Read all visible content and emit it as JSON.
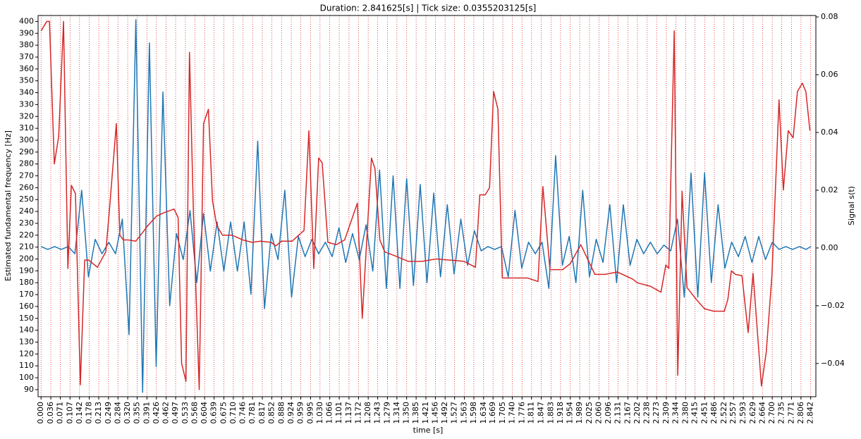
{
  "chart_data": {
    "type": "line",
    "title": "Duration: 2.841625[s] | Tick size: 0.0355203125[s]",
    "xlabel": "time [s]",
    "ylabel": "Estimated fundamental frequency [Hz]",
    "y2label": "Signal s(t)",
    "grid": true,
    "grid_color": "#d62728",
    "xlim": [
      -0.011,
      2.861
    ],
    "ylim": [
      84,
      405
    ],
    "y2lim": [
      -0.0515,
      0.0805
    ],
    "xticks": [
      {
        "value": 0,
        "label": "0.000"
      },
      0.036,
      0.071,
      0.107,
      0.142,
      0.178,
      0.213,
      0.249,
      0.284,
      {
        "value": 0.32,
        "label": "0.320"
      },
      0.355,
      0.391,
      0.426,
      0.462,
      0.497,
      0.533,
      0.568,
      0.604,
      0.639,
      0.675,
      {
        "value": 0.71,
        "label": "0.710"
      },
      0.746,
      0.781,
      0.817,
      0.852,
      0.888,
      0.924,
      0.959,
      0.995,
      {
        "value": 1.03,
        "label": "1.030"
      },
      1.066,
      1.101,
      1.137,
      1.172,
      1.208,
      1.243,
      1.279,
      1.314,
      {
        "value": 1.35,
        "label": "1.350"
      },
      1.385,
      1.421,
      1.456,
      1.492,
      1.527,
      1.563,
      1.598,
      1.634,
      1.669,
      1.705,
      {
        "value": 1.74,
        "label": "1.740"
      },
      1.776,
      1.811,
      1.847,
      1.883,
      1.918,
      1.954,
      1.989,
      2.025,
      {
        "value": 2.06,
        "label": "2.060"
      },
      2.096,
      2.131,
      2.167,
      2.202,
      2.238,
      2.273,
      2.309,
      2.344,
      {
        "value": 2.38,
        "label": "2.380"
      },
      2.415,
      2.451,
      2.486,
      2.522,
      2.557,
      2.593,
      2.629,
      2.664,
      {
        "value": 2.7,
        "label": "2.700"
      },
      2.735,
      2.771,
      2.806,
      2.842
    ],
    "yticks": [
      90,
      100,
      110,
      120,
      130,
      140,
      150,
      160,
      170,
      180,
      190,
      200,
      210,
      220,
      230,
      240,
      250,
      260,
      270,
      280,
      290,
      300,
      310,
      320,
      330,
      340,
      350,
      360,
      370,
      380,
      390,
      400
    ],
    "y2ticks": [
      {
        "value": -0.04,
        "label": "−0.04"
      },
      {
        "value": -0.02,
        "label": "−0.02"
      },
      {
        "value": 0,
        "label": "0.00"
      },
      0.02,
      0.04,
      0.06,
      0.08
    ],
    "series": [
      {
        "color": "#1f77b4",
        "axis": "y2",
        "x": [
          0,
          0.025,
          0.05,
          0.075,
          0.1,
          0.125,
          0.15,
          0.175,
          0.2,
          0.225,
          0.25,
          0.275,
          0.3,
          0.325,
          0.35,
          0.375,
          0.4,
          0.425,
          0.45,
          0.475,
          0.5,
          0.525,
          0.55,
          0.575,
          0.6,
          0.625,
          0.65,
          0.675,
          0.7,
          0.725,
          0.75,
          0.775,
          0.8,
          0.825,
          0.85,
          0.875,
          0.9,
          0.925,
          0.95,
          0.975,
          1.0,
          1.025,
          1.05,
          1.075,
          1.1,
          1.125,
          1.15,
          1.175,
          1.2,
          1.225,
          1.25,
          1.275,
          1.3,
          1.325,
          1.35,
          1.375,
          1.4,
          1.425,
          1.45,
          1.475,
          1.5,
          1.525,
          1.55,
          1.575,
          1.6,
          1.625,
          1.65,
          1.675,
          1.7,
          1.725,
          1.75,
          1.775,
          1.8,
          1.825,
          1.85,
          1.875,
          1.9,
          1.925,
          1.95,
          1.975,
          2.0,
          2.025,
          2.05,
          2.075,
          2.1,
          2.125,
          2.15,
          2.175,
          2.2,
          2.225,
          2.25,
          2.275,
          2.3,
          2.325,
          2.35,
          2.375,
          2.4,
          2.425,
          2.45,
          2.475,
          2.5,
          2.525,
          2.55,
          2.575,
          2.6,
          2.625,
          2.65,
          2.675,
          2.7,
          2.725,
          2.75,
          2.775,
          2.8,
          2.825,
          2.842
        ],
        "values": [
          0.0005,
          -0.0005,
          0.0005,
          -0.0005,
          0.0005,
          -0.002,
          0.02,
          -0.01,
          0.003,
          -0.002,
          0.002,
          -0.002,
          0.01,
          -0.03,
          0.079,
          -0.05,
          0.071,
          -0.041,
          0.054,
          -0.02,
          0.005,
          -0.004,
          0.013,
          -0.012,
          0.012,
          -0.008,
          0.009,
          -0.008,
          0.009,
          -0.008,
          0.009,
          -0.016,
          0.037,
          -0.021,
          0.005,
          -0.004,
          0.02,
          -0.017,
          0.004,
          -0.003,
          0.003,
          -0.002,
          0.002,
          -0.003,
          0.007,
          -0.005,
          0.005,
          -0.004,
          0.008,
          -0.008,
          0.027,
          -0.014,
          0.025,
          -0.014,
          0.024,
          -0.013,
          0.022,
          -0.012,
          0.019,
          -0.01,
          0.015,
          -0.009,
          0.01,
          -0.006,
          0.006,
          -0.001,
          0.0005,
          -0.0005,
          0.0005,
          -0.01,
          0.013,
          -0.007,
          0.002,
          -0.002,
          0.002,
          -0.014,
          0.032,
          -0.006,
          0.004,
          -0.012,
          0.02,
          -0.01,
          0.003,
          -0.005,
          0.015,
          -0.012,
          0.015,
          -0.006,
          0.003,
          -0.002,
          0.002,
          -0.002,
          0.001,
          -0.001,
          0.01,
          -0.017,
          0.026,
          -0.017,
          0.026,
          -0.012,
          0.015,
          -0.007,
          0.002,
          -0.003,
          0.004,
          -0.005,
          0.004,
          -0.004,
          0.002,
          -0.0005,
          0.0005,
          -0.0005,
          0.0005,
          -0.0005,
          0.0005
        ]
      },
      {
        "color": "#d62728",
        "axis": "y",
        "x": [
          0,
          0.021,
          0.031,
          0.049,
          0.065,
          0.083,
          0.099,
          0.112,
          0.127,
          0.145,
          0.161,
          0.176,
          0.208,
          0.239,
          0.252,
          0.278,
          0.291,
          0.304,
          0.322,
          0.35,
          0.374,
          0.394,
          0.426,
          0.454,
          0.491,
          0.506,
          0.519,
          0.535,
          0.548,
          0.563,
          0.584,
          0.6,
          0.618,
          0.633,
          0.649,
          0.67,
          0.706,
          0.745,
          0.779,
          0.81,
          0.849,
          0.867,
          0.888,
          0.927,
          0.971,
          0.989,
          1.007,
          1.025,
          1.038,
          1.059,
          1.09,
          1.121,
          1.168,
          1.186,
          1.22,
          1.233,
          1.251,
          1.269,
          1.303,
          1.355,
          1.407,
          1.459,
          1.51,
          1.562,
          1.604,
          1.62,
          1.64,
          1.656,
          1.671,
          1.687,
          1.703,
          1.744,
          1.796,
          1.835,
          1.853,
          1.879,
          1.926,
          1.954,
          1.993,
          2.045,
          2.082,
          2.128,
          2.185,
          2.201,
          2.25,
          2.289,
          2.307,
          2.318,
          2.338,
          2.351,
          2.367,
          2.385,
          2.419,
          2.45,
          2.484,
          2.523,
          2.536,
          2.549,
          2.564,
          2.588,
          2.611,
          2.629,
          2.66,
          2.678,
          2.699,
          2.725,
          2.741,
          2.759,
          2.777,
          2.793,
          2.811,
          2.824,
          2.839
        ],
        "values": [
          392,
          400,
          400,
          280,
          303,
          400,
          192,
          262,
          255,
          94,
          199,
          199,
          193,
          206,
          240,
          314,
          220,
          216,
          216,
          215,
          222,
          228,
          236,
          239,
          242,
          235,
          112,
          97,
          374,
          235,
          90,
          314,
          326,
          249,
          228,
          220,
          220,
          216,
          214,
          215,
          214,
          211,
          215,
          215,
          224,
          308,
          192,
          285,
          281,
          214,
          212,
          216,
          247,
          150,
          285,
          276,
          216,
          206,
          203,
          198,
          198,
          200,
          199,
          198,
          193,
          254,
          254,
          260,
          341,
          326,
          184,
          184,
          184,
          181,
          261,
          191,
          191,
          196,
          212,
          187,
          187,
          189,
          183,
          180,
          177,
          172,
          195,
          192,
          392,
          102,
          257,
          176,
          166,
          158,
          156,
          156,
          166,
          190,
          187,
          186,
          138,
          188,
          93,
          122,
          187,
          334,
          258,
          308,
          302,
          341,
          348,
          341,
          308
        ]
      }
    ]
  }
}
